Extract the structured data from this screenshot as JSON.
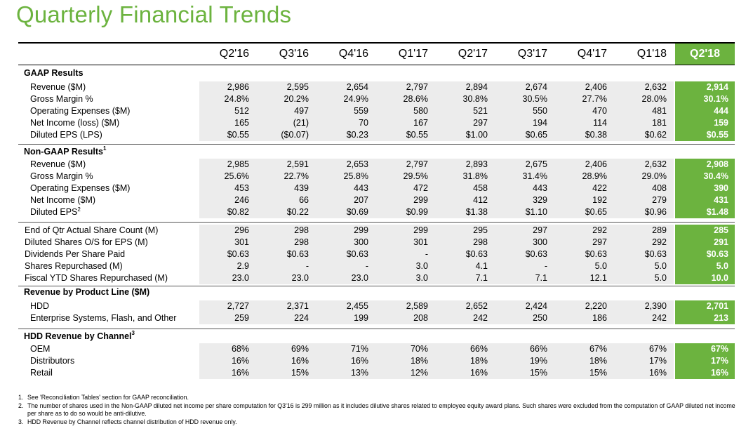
{
  "title": "Quarterly Financial Trends",
  "quarters": [
    "Q2'16",
    "Q3'16",
    "Q4'16",
    "Q1'17",
    "Q2'17",
    "Q3'17",
    "Q4'17",
    "Q1'18",
    "Q2'18"
  ],
  "sections": [
    {
      "title": "GAAP Results",
      "sup": "",
      "rows": [
        {
          "label": "Revenue ($M)",
          "sup": "",
          "values": [
            "2,986",
            "2,595",
            "2,654",
            "2,797",
            "2,894",
            "2,674",
            "2,406",
            "2,632",
            "2,914"
          ]
        },
        {
          "label": "Gross Margin %",
          "sup": "",
          "values": [
            "24.8%",
            "20.2%",
            "24.9%",
            "28.6%",
            "30.8%",
            "30.5%",
            "27.7%",
            "28.0%",
            "30.1%"
          ]
        },
        {
          "label": "Operating Expenses ($M)",
          "sup": "",
          "values": [
            "512",
            "497",
            "559",
            "580",
            "521",
            "550",
            "470",
            "481",
            "444"
          ]
        },
        {
          "label": "Net Income (loss) ($M)",
          "sup": "",
          "values": [
            "165",
            "(21)",
            "70",
            "167",
            "297",
            "194",
            "114",
            "181",
            "159"
          ]
        },
        {
          "label": "Diluted EPS (LPS)",
          "sup": "",
          "values": [
            "$0.55",
            "($0.07)",
            "$0.23",
            "$0.55",
            "$1.00",
            "$0.65",
            "$0.38",
            "$0.62",
            "$0.55"
          ]
        }
      ]
    },
    {
      "title": "Non-GAAP Results",
      "sup": "1",
      "rows": [
        {
          "label": "Revenue ($M)",
          "sup": "",
          "values": [
            "2,985",
            "2,591",
            "2,653",
            "2,797",
            "2,893",
            "2,675",
            "2,406",
            "2,632",
            "2,908"
          ]
        },
        {
          "label": "Gross Margin %",
          "sup": "",
          "values": [
            "25.6%",
            "22.7%",
            "25.8%",
            "29.5%",
            "31.8%",
            "31.4%",
            "28.9%",
            "29.0%",
            "30.4%"
          ]
        },
        {
          "label": "Operating Expenses ($M)",
          "sup": "",
          "values": [
            "453",
            "439",
            "443",
            "472",
            "458",
            "443",
            "422",
            "408",
            "390"
          ]
        },
        {
          "label": "Net Income ($M)",
          "sup": "",
          "values": [
            "246",
            "66",
            "207",
            "299",
            "412",
            "329",
            "192",
            "279",
            "431"
          ]
        },
        {
          "label": "Diluted EPS",
          "sup": "2",
          "values": [
            "$0.82",
            "$0.22",
            "$0.69",
            "$0.99",
            "$1.38",
            "$1.10",
            "$0.65",
            "$0.96",
            "$1.48"
          ]
        }
      ]
    },
    {
      "title": "",
      "sup": "",
      "rows": [
        {
          "label": "End of Qtr Actual Share Count (M)",
          "sup": "",
          "values": [
            "296",
            "298",
            "299",
            "299",
            "295",
            "297",
            "292",
            "289",
            "285"
          ]
        },
        {
          "label": "Diluted Shares O/S for EPS (M)",
          "sup": "",
          "values": [
            "301",
            "298",
            "300",
            "301",
            "298",
            "300",
            "297",
            "292",
            "291"
          ]
        },
        {
          "label": "Dividends Per Share Paid",
          "sup": "",
          "values": [
            "$0.63",
            "$0.63",
            "$0.63",
            "-",
            "$0.63",
            "$0.63",
            "$0.63",
            "$0.63",
            "$0.63"
          ]
        },
        {
          "label": "Shares Repurchased (M)",
          "sup": "",
          "values": [
            "2.9",
            "-",
            "-",
            "3.0",
            "4.1",
            "-",
            "5.0",
            "5.0",
            "5.0"
          ]
        },
        {
          "label": "Fiscal YTD Shares Repurchased (M)",
          "sup": "",
          "values": [
            "23.0",
            "23.0",
            "23.0",
            "3.0",
            "7.1",
            "7.1",
            "12.1",
            "5.0",
            "10.0"
          ]
        }
      ]
    },
    {
      "title": "Revenue by Product Line ($M)",
      "sup": "",
      "rows": [
        {
          "label": "HDD",
          "sup": "",
          "values": [
            "2,727",
            "2,371",
            "2,455",
            "2,589",
            "2,652",
            "2,424",
            "2,220",
            "2,390",
            "2,701"
          ]
        },
        {
          "label": "Enterprise Systems, Flash, and Other",
          "sup": "",
          "values": [
            "259",
            "224",
            "199",
            "208",
            "242",
            "250",
            "186",
            "242",
            "213"
          ]
        }
      ]
    },
    {
      "title": "HDD Revenue by Channel",
      "sup": "3",
      "rows": [
        {
          "label": "OEM",
          "sup": "",
          "values": [
            "68%",
            "69%",
            "71%",
            "70%",
            "66%",
            "66%",
            "67%",
            "67%",
            "67%"
          ]
        },
        {
          "label": "Distributors",
          "sup": "",
          "values": [
            "16%",
            "16%",
            "16%",
            "18%",
            "18%",
            "19%",
            "18%",
            "17%",
            "17%"
          ]
        },
        {
          "label": "Retail",
          "sup": "",
          "values": [
            "16%",
            "15%",
            "13%",
            "12%",
            "16%",
            "15%",
            "15%",
            "16%",
            "16%"
          ]
        }
      ]
    }
  ],
  "footnotes": [
    {
      "num": "1.",
      "text": "See 'Reconciliation Tables' section for GAAP reconciliation."
    },
    {
      "num": "2.",
      "text": "The number of shares used in the Non-GAAP diluted net income per share computation for Q3'16 is 299 million as it includes dilutive shares related to employee equity award plans. Such shares were excluded from the computation of GAAP diluted net income per share as to do so would be anti-dilutive."
    },
    {
      "num": "3.",
      "text": "HDD Revenue by Channel reflects channel distribution of HDD revenue only."
    }
  ],
  "colors": {
    "accent": "#6cb33f",
    "band": "#ececec"
  }
}
